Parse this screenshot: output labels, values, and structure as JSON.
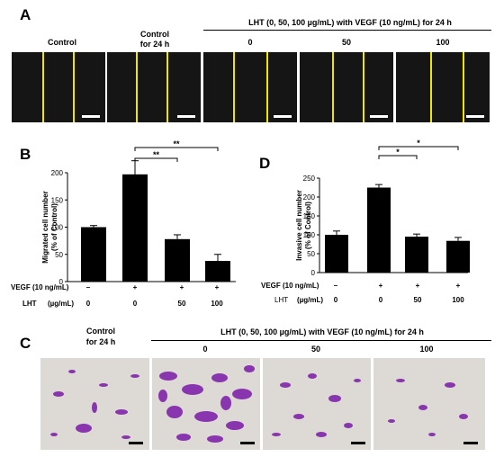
{
  "panel_a": {
    "letter": "A",
    "labels": [
      "Control",
      "Control\nfor 24 h",
      "0",
      "50",
      "100"
    ],
    "group_title": "LHT (0, 50, 100 µg/mL) with VEGF (10 ng/mL) for 24 h"
  },
  "panel_b": {
    "letter": "B",
    "sig": [
      "**",
      "**"
    ],
    "row1_label": "VEGF (10 ng/mL)",
    "row1_values": [
      "–",
      "+",
      "+",
      "+"
    ],
    "row2_label": "LHT",
    "row2_unit": "(µg/mL)",
    "row2_values": [
      "0",
      "0",
      "50",
      "100"
    ]
  },
  "panel_d": {
    "letter": "D",
    "sig": [
      "*",
      "*"
    ],
    "row1_label": "VEGF (10 ng/mL)",
    "row1_values": [
      "–",
      "+",
      "+",
      "+"
    ],
    "row2_label": "LHT",
    "row2_unit": "(µg/mL)",
    "row2_values": [
      "0",
      "0",
      "50",
      "100"
    ]
  },
  "panel_c": {
    "letter": "C",
    "labels": [
      "Control\nfor 24 h",
      "0",
      "50",
      "100"
    ],
    "group_title": "LHT (0, 50, 100 µg/mL) with VEGF (10 ng/mL) for 24 h"
  },
  "colors": {
    "bar": "#000000",
    "boundary_line": "#f2e600",
    "stain": "#8a35b0"
  },
  "chart_data": [
    {
      "type": "bar",
      "title": "",
      "ylabel": "Migrated cell number\n(% of Control)",
      "xlabel": "",
      "categories": [
        "1",
        "2",
        "3",
        "4"
      ],
      "values": [
        100,
        197,
        78,
        38
      ],
      "errors": [
        3,
        25,
        8,
        12
      ],
      "ylim": [
        0,
        200
      ],
      "yticks": [
        "0",
        "50",
        "100",
        "150",
        "200"
      ],
      "grid": false
    },
    {
      "type": "bar",
      "title": "",
      "ylabel": "Invasive cell number\n(% of Control)",
      "xlabel": "",
      "categories": [
        "1",
        "2",
        "3",
        "4"
      ],
      "values": [
        100,
        225,
        95,
        84
      ],
      "errors": [
        10,
        8,
        7,
        9
      ],
      "ylim": [
        0,
        250
      ],
      "yticks": [
        "0",
        "50",
        "100",
        "150",
        "200",
        "250"
      ],
      "grid": false
    }
  ]
}
